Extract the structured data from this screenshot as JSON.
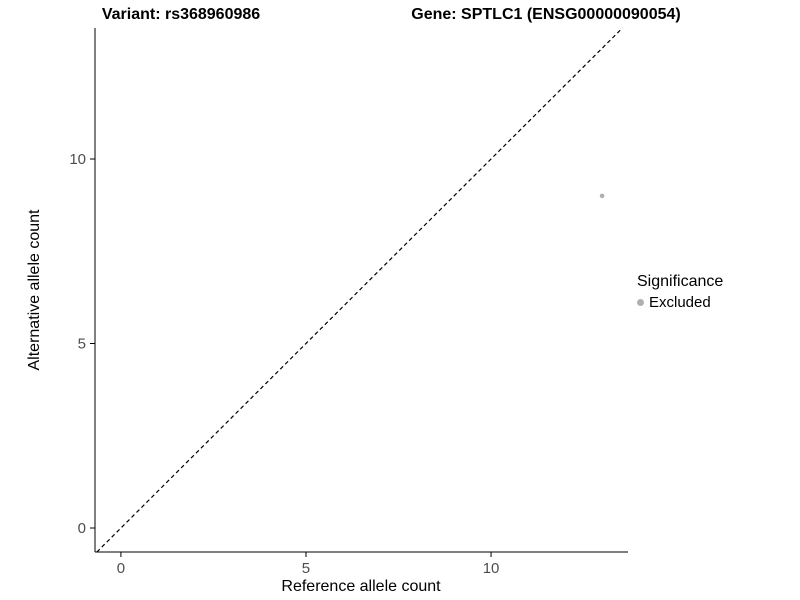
{
  "titles": {
    "left": "Variant: rs368960986",
    "right": "Gene: SPTLC1 (ENSG00000090054)"
  },
  "chart_data": {
    "type": "scatter",
    "title_left": "Variant: rs368960986",
    "title_right": "Gene: SPTLC1 (ENSG00000090054)",
    "xlabel": "Reference allele count",
    "ylabel": "Alternative allele count",
    "xlim": [
      -0.7,
      13.7
    ],
    "ylim": [
      -0.65,
      13.55
    ],
    "xticks": [
      0,
      5,
      10
    ],
    "yticks": [
      0,
      5,
      10
    ],
    "grid": false,
    "points": [
      {
        "x": 13,
        "y": 9,
        "series": "Excluded"
      }
    ],
    "identity_line": {
      "slope": 1,
      "intercept": 0,
      "style": "dashed",
      "color": "#000000"
    },
    "legend": {
      "title": "Significance",
      "position": "right",
      "items": [
        {
          "label": "Excluded",
          "color": "#b0b0b0"
        }
      ]
    }
  }
}
